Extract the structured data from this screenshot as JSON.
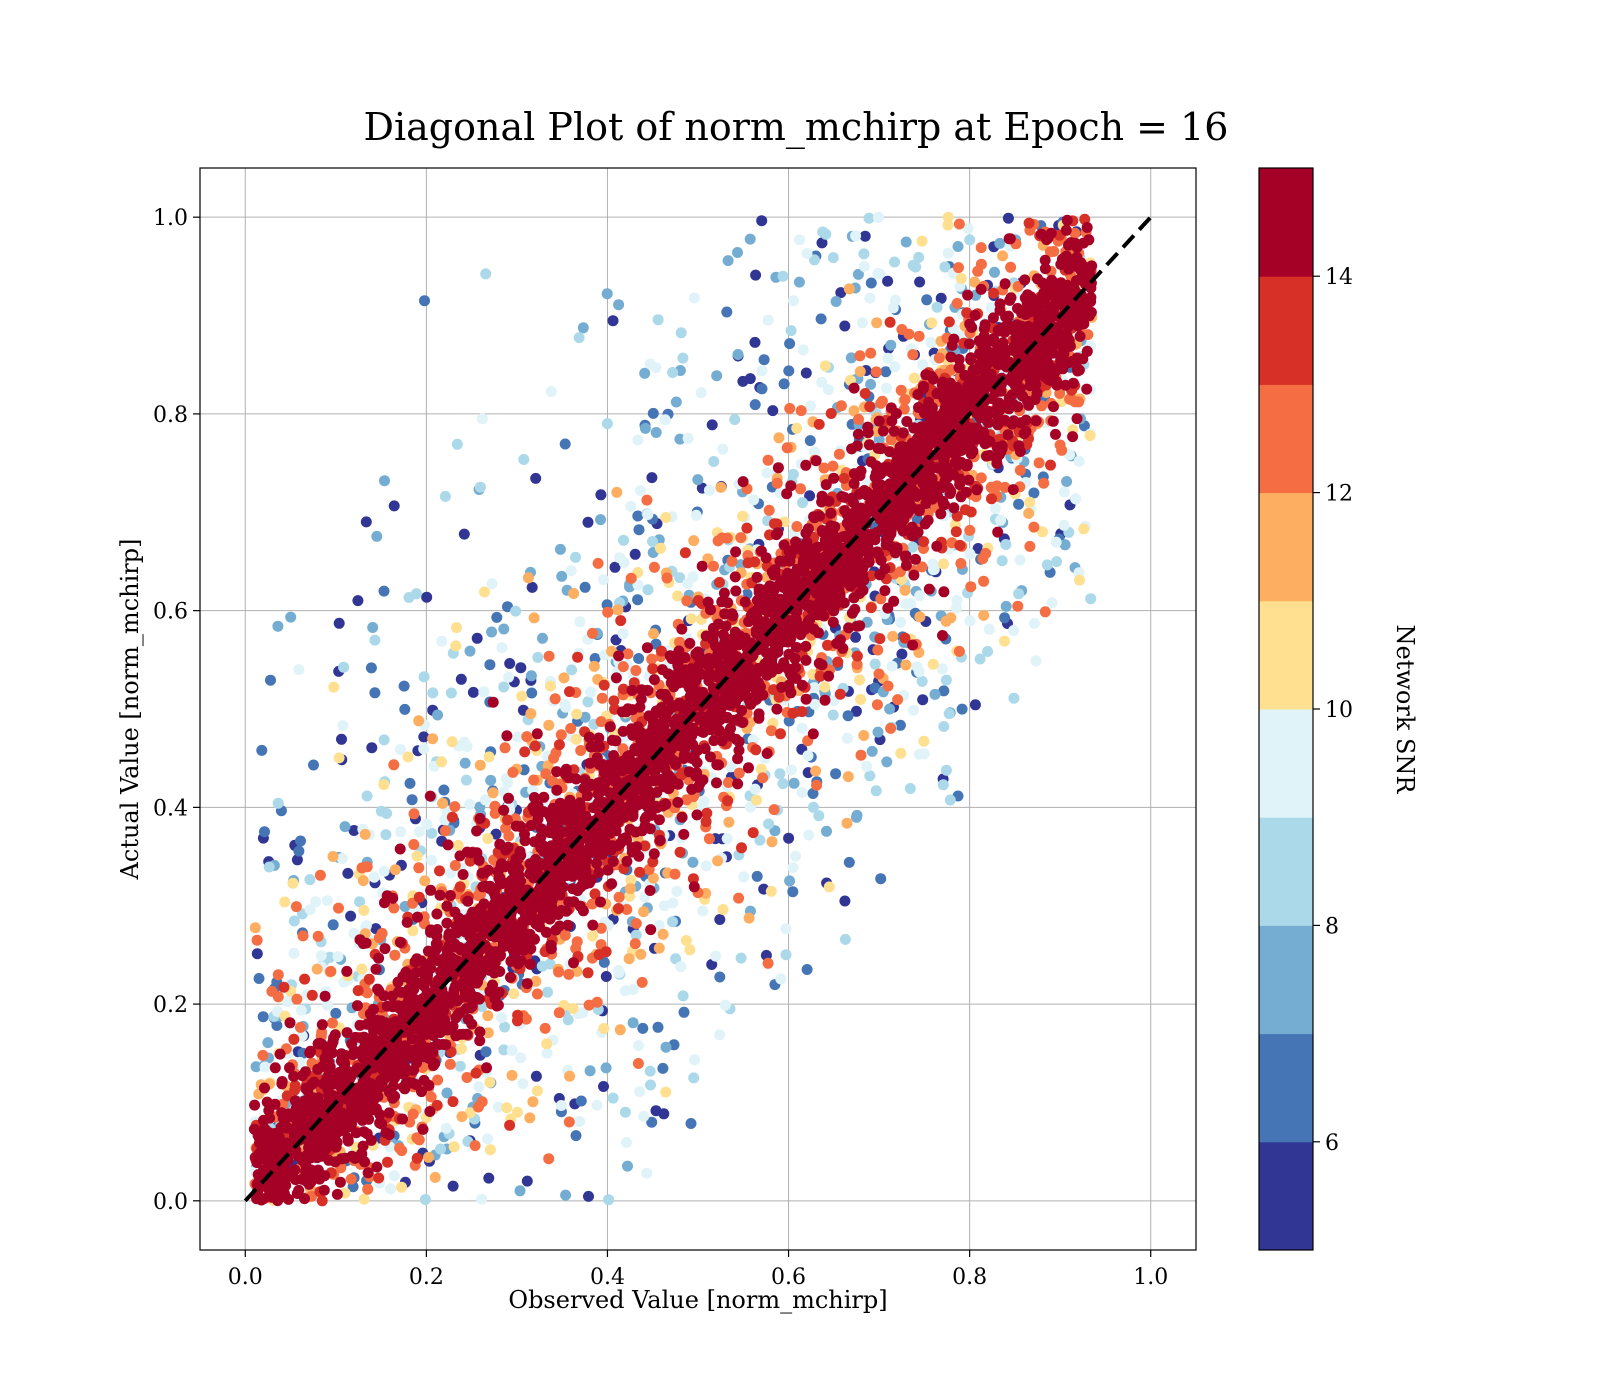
{
  "chart_data": {
    "type": "scatter",
    "title": "Diagonal Plot of norm_mchirp at Epoch = 16",
    "xlabel": "Observed Value [norm_mchirp]",
    "ylabel": "Actual Value [norm_mchirp]",
    "xlim": [
      -0.05,
      1.05
    ],
    "ylim": [
      -0.05,
      1.05
    ],
    "xticks": [
      {
        "value": 0.0,
        "label": "0.0"
      },
      {
        "value": 0.2,
        "label": "0.2"
      },
      {
        "value": 0.4,
        "label": "0.4"
      },
      {
        "value": 0.6,
        "label": "0.6"
      },
      {
        "value": 0.8,
        "label": "0.8"
      },
      {
        "value": 1.0,
        "label": "1.0"
      }
    ],
    "yticks": [
      {
        "value": 0.0,
        "label": "0.0"
      },
      {
        "value": 0.2,
        "label": "0.2"
      },
      {
        "value": 0.4,
        "label": "0.4"
      },
      {
        "value": 0.6,
        "label": "0.6"
      },
      {
        "value": 0.8,
        "label": "0.8"
      },
      {
        "value": 1.0,
        "label": "1.0"
      }
    ],
    "grid": true,
    "reference_line": {
      "x": [
        0.0,
        1.0
      ],
      "y": [
        0.0,
        1.0
      ],
      "style": "dashed",
      "color": "#000000"
    },
    "scatter_distribution": {
      "description_free_params": true,
      "x_range": [
        0.0,
        0.94
      ],
      "y_range": [
        0.0,
        1.0
      ],
      "center": "y = x",
      "high_snr_near_diagonal": true
    },
    "colorbar": {
      "label": "Network SNR",
      "range": [
        5,
        15
      ],
      "ticks": [
        {
          "value": 6,
          "label": "6"
        },
        {
          "value": 8,
          "label": "8"
        },
        {
          "value": 10,
          "label": "10"
        },
        {
          "value": 12,
          "label": "12"
        },
        {
          "value": 14,
          "label": "14"
        }
      ],
      "bands": [
        "#313695",
        "#4575b4",
        "#74add1",
        "#abd9e9",
        "#e0f3f8",
        "#fee090",
        "#fdae61",
        "#f46d43",
        "#d73027",
        "#a50026"
      ]
    }
  }
}
